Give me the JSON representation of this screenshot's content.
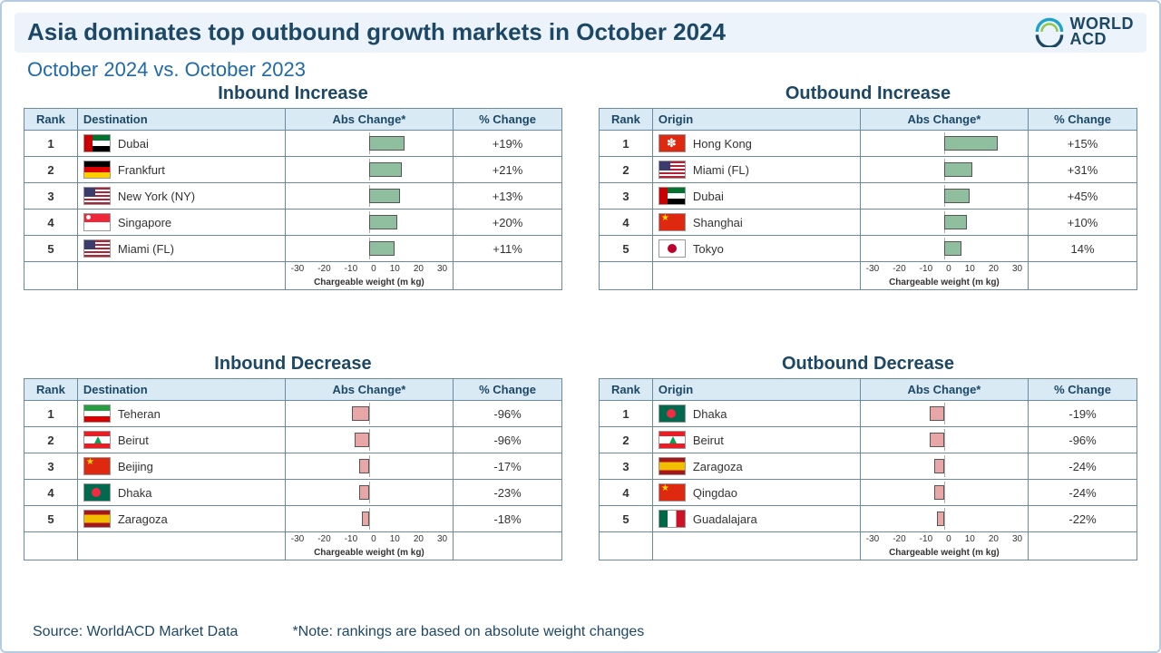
{
  "title": "Asia dominates top outbound growth markets in October 2024",
  "subtitle": "October 2024 vs. October 2023",
  "logo": {
    "line1": "WORLD",
    "line2": "ACD"
  },
  "footer": {
    "source": "Source: WorldACD Market Data",
    "note": "*Note: rankings are based on absolute weight changes"
  },
  "style": {
    "bar_range": [
      -30,
      30
    ],
    "ticks": [
      "-30",
      "-20",
      "-10",
      "0",
      "10",
      "20",
      "30"
    ],
    "axis_label": "Chargeable weight (m kg)",
    "increase_bar_color": "#8fbf9f",
    "decrease_bar_color": "#e9a6a6",
    "bar_border_color": "#555555",
    "title_color": "#1c4866",
    "subtitle_color": "#1f6aa6",
    "header_bg": "#d9eaf5",
    "titlebar_bg": "#ecf3fa",
    "border_color": "#6a8aa0",
    "font_family": "Arial",
    "title_fontsize_pt": 20,
    "subtitle_fontsize_pt": 17,
    "panel_title_fontsize_pt": 15,
    "cell_fontsize_pt": 10
  },
  "columns_dest": [
    "Rank",
    "Destination",
    "Abs Change*",
    "% Change"
  ],
  "columns_orig": [
    "Rank",
    "Origin",
    "Abs Change*",
    "% Change"
  ],
  "panels": [
    {
      "key": "in_inc",
      "title": "Inbound Increase",
      "loc_header": "Destination",
      "bar_color": "#8fbf9f",
      "rows": [
        {
          "rank": 1,
          "flag": "uae",
          "name": "Dubai",
          "abs": 13,
          "pct": "+19%"
        },
        {
          "rank": 2,
          "flag": "de",
          "name": "Frankfurt",
          "abs": 12,
          "pct": "+21%"
        },
        {
          "rank": 3,
          "flag": "us",
          "name": "New York (NY)",
          "abs": 11,
          "pct": "+13%"
        },
        {
          "rank": 4,
          "flag": "sg",
          "name": "Singapore",
          "abs": 10,
          "pct": "+20%"
        },
        {
          "rank": 5,
          "flag": "us",
          "name": "Miami (FL)",
          "abs": 9,
          "pct": "+11%"
        }
      ]
    },
    {
      "key": "out_inc",
      "title": "Outbound Increase",
      "loc_header": "Origin",
      "bar_color": "#8fbf9f",
      "rows": [
        {
          "rank": 1,
          "flag": "hk",
          "name": "Hong Kong",
          "abs": 20,
          "pct": "+15%"
        },
        {
          "rank": 2,
          "flag": "us",
          "name": "Miami (FL)",
          "abs": 10,
          "pct": "+31%"
        },
        {
          "rank": 3,
          "flag": "uae",
          "name": "Dubai",
          "abs": 9,
          "pct": "+45%"
        },
        {
          "rank": 4,
          "flag": "cn",
          "name": "Shanghai",
          "abs": 8,
          "pct": "+10%"
        },
        {
          "rank": 5,
          "flag": "jp",
          "name": "Tokyo",
          "abs": 6,
          "pct": "14%"
        }
      ]
    },
    {
      "key": "in_dec",
      "title": "Inbound Decrease",
      "loc_header": "Destination",
      "bar_color": "#e9a6a6",
      "rows": [
        {
          "rank": 1,
          "flag": "ir",
          "name": "Teheran",
          "abs": -6,
          "pct": "-96%"
        },
        {
          "rank": 2,
          "flag": "lb",
          "name": "Beirut",
          "abs": -5,
          "pct": "-96%"
        },
        {
          "rank": 3,
          "flag": "cn",
          "name": "Beijing",
          "abs": -3,
          "pct": "-17%"
        },
        {
          "rank": 4,
          "flag": "bd",
          "name": "Dhaka",
          "abs": -3,
          "pct": "-23%"
        },
        {
          "rank": 5,
          "flag": "es",
          "name": "Zaragoza",
          "abs": -2,
          "pct": "-18%"
        }
      ]
    },
    {
      "key": "out_dec",
      "title": "Outbound Decrease",
      "loc_header": "Origin",
      "bar_color": "#e9a6a6",
      "rows": [
        {
          "rank": 1,
          "flag": "bd",
          "name": "Dhaka",
          "abs": -5,
          "pct": "-19%"
        },
        {
          "rank": 2,
          "flag": "lb",
          "name": "Beirut",
          "abs": -5,
          "pct": "-96%"
        },
        {
          "rank": 3,
          "flag": "es",
          "name": "Zaragoza",
          "abs": -3,
          "pct": "-24%"
        },
        {
          "rank": 4,
          "flag": "cn",
          "name": "Qingdao",
          "abs": -3,
          "pct": "-24%"
        },
        {
          "rank": 5,
          "flag": "mx",
          "name": "Guadalajara",
          "abs": -2,
          "pct": "-22%"
        }
      ]
    }
  ]
}
